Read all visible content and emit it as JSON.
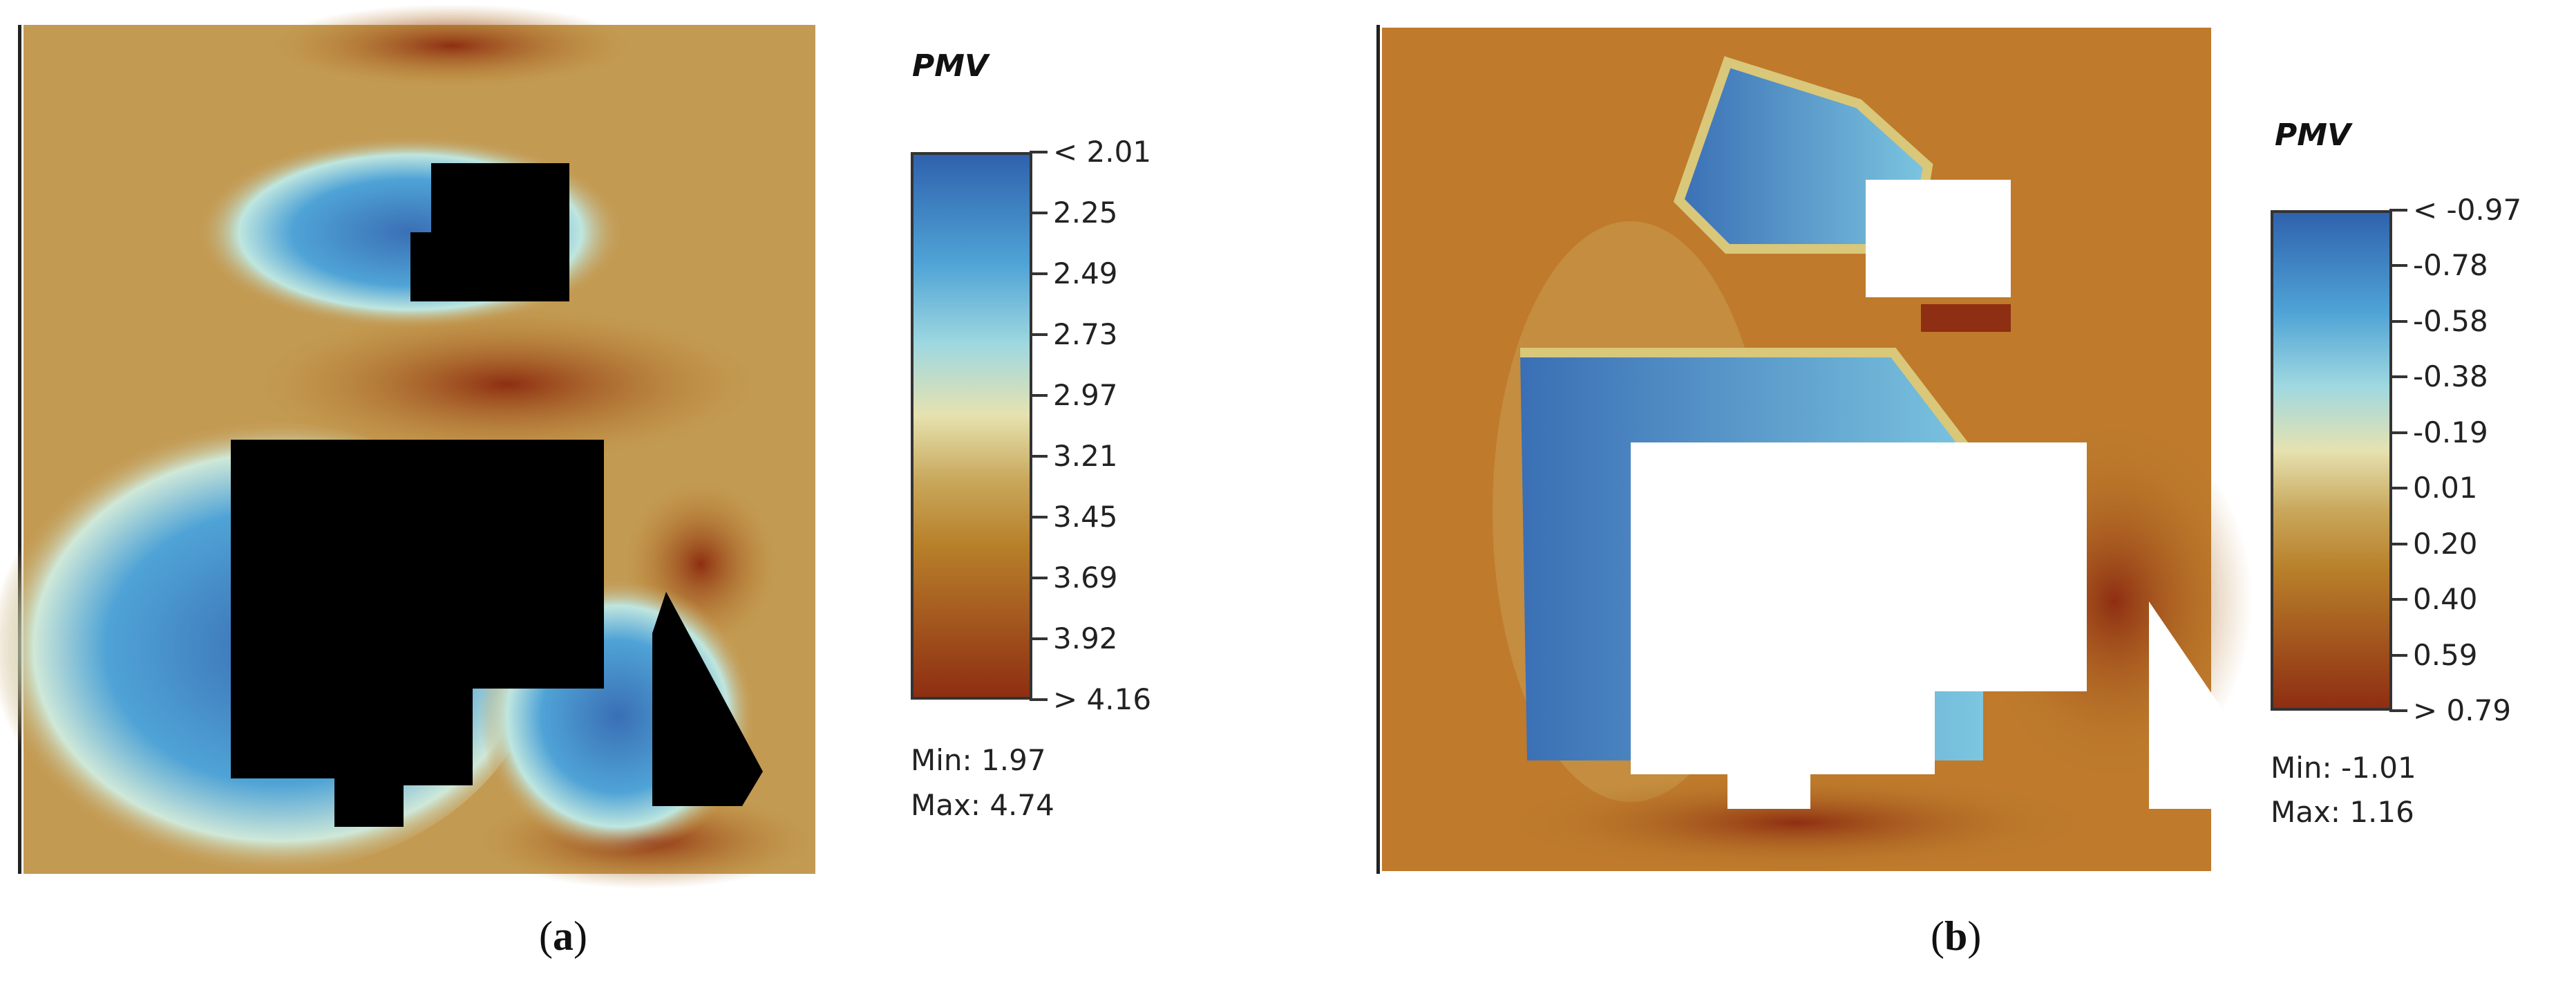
{
  "chart_data": [
    {
      "type": "heatmap",
      "panel_caption": "a",
      "legend_title": "PMV",
      "colorbar_ticks": [
        "< 2.01",
        "2.25",
        "2.49",
        "2.73",
        "2.97",
        "3.21",
        "3.45",
        "3.69",
        "3.92",
        "> 4.16"
      ],
      "value_range": [
        2.01,
        4.16
      ],
      "stats": {
        "min": "Min: 1.97",
        "max": "Max: 4.74"
      },
      "building_color": "#000000",
      "colormap": [
        "#3a6fb5",
        "#4fa3d6",
        "#9fd8e0",
        "#e6e2b0",
        "#c9a85c",
        "#b8802a",
        "#a55a1f",
        "#8e2e12"
      ]
    },
    {
      "type": "heatmap",
      "panel_caption": "b",
      "legend_title": "PMV",
      "colorbar_ticks": [
        "< -0.97",
        "-0.78",
        "-0.58",
        "-0.38",
        "-0.19",
        "0.01",
        "0.20",
        "0.40",
        "0.59",
        "> 0.79"
      ],
      "value_range": [
        -0.97,
        0.79
      ],
      "stats": {
        "min": "Min: -1.01",
        "max": "Max: 1.16"
      },
      "building_color": "#ffffff",
      "colormap": [
        "#3a6fb5",
        "#4fa3d6",
        "#9fd8e0",
        "#e6e2b0",
        "#c9a85c",
        "#b8802a",
        "#a55a1f",
        "#8e2e12"
      ]
    }
  ]
}
